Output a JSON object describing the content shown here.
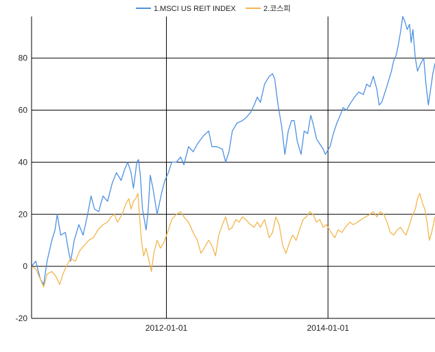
{
  "chart_data": {
    "type": "line",
    "title": "",
    "xlabel": "",
    "ylabel": "",
    "x_range": [
      "2010-05-01",
      "2015-04-30"
    ],
    "x_ticks": [
      "2012-01-01",
      "2014-01-01"
    ],
    "ylim": [
      -20,
      96
    ],
    "y_ticks": [
      -20,
      0,
      20,
      40,
      60,
      80
    ],
    "grid": true,
    "legend_position": "top-center",
    "series": [
      {
        "name": "1.MSCI US REIT INDEX",
        "color": "#4a8fe2",
        "points": [
          [
            "2010-05-01",
            0
          ],
          [
            "2010-05-20",
            2
          ],
          [
            "2010-06-10",
            -5
          ],
          [
            "2010-06-25",
            -7
          ],
          [
            "2010-07-10",
            2
          ],
          [
            "2010-08-01",
            10
          ],
          [
            "2010-08-15",
            14
          ],
          [
            "2010-08-25",
            20
          ],
          [
            "2010-09-10",
            12
          ],
          [
            "2010-10-01",
            13
          ],
          [
            "2010-10-15",
            6
          ],
          [
            "2010-10-25",
            2
          ],
          [
            "2010-11-10",
            10
          ],
          [
            "2010-12-01",
            16
          ],
          [
            "2010-12-20",
            12
          ],
          [
            "2011-01-10",
            20
          ],
          [
            "2011-01-25",
            27
          ],
          [
            "2011-02-10",
            22
          ],
          [
            "2011-03-01",
            21
          ],
          [
            "2011-03-20",
            27
          ],
          [
            "2011-04-10",
            25
          ],
          [
            "2011-05-01",
            32
          ],
          [
            "2011-05-20",
            36
          ],
          [
            "2011-06-10",
            33
          ],
          [
            "2011-06-25",
            37
          ],
          [
            "2011-07-10",
            40
          ],
          [
            "2011-07-25",
            36
          ],
          [
            "2011-08-05",
            30
          ],
          [
            "2011-08-20",
            40
          ],
          [
            "2011-08-28",
            41
          ],
          [
            "2011-09-05",
            35
          ],
          [
            "2011-09-15",
            22
          ],
          [
            "2011-10-01",
            14
          ],
          [
            "2011-10-10",
            21
          ],
          [
            "2011-10-20",
            35
          ],
          [
            "2011-11-01",
            30
          ],
          [
            "2011-11-20",
            20
          ],
          [
            "2011-12-10",
            28
          ],
          [
            "2011-12-25",
            33
          ],
          [
            "2012-01-10",
            36
          ],
          [
            "2012-01-25",
            40
          ],
          [
            "2012-02-15",
            40
          ],
          [
            "2012-03-05",
            42
          ],
          [
            "2012-03-20",
            39
          ],
          [
            "2012-04-10",
            46
          ],
          [
            "2012-05-01",
            44
          ],
          [
            "2012-05-20",
            47
          ],
          [
            "2012-06-15",
            50
          ],
          [
            "2012-07-10",
            52
          ],
          [
            "2012-07-25",
            46
          ],
          [
            "2012-08-15",
            46
          ],
          [
            "2012-09-10",
            45
          ],
          [
            "2012-09-25",
            40
          ],
          [
            "2012-10-10",
            44
          ],
          [
            "2012-10-25",
            52
          ],
          [
            "2012-11-15",
            55
          ],
          [
            "2012-12-10",
            56
          ],
          [
            "2012-12-25",
            57
          ],
          [
            "2013-01-15",
            59
          ],
          [
            "2013-02-01",
            62
          ],
          [
            "2013-02-15",
            65
          ],
          [
            "2013-03-01",
            63
          ],
          [
            "2013-03-20",
            70
          ],
          [
            "2013-04-10",
            73
          ],
          [
            "2013-04-25",
            74
          ],
          [
            "2013-05-05",
            72
          ],
          [
            "2013-05-20",
            62
          ],
          [
            "2013-06-05",
            54
          ],
          [
            "2013-06-20",
            43
          ],
          [
            "2013-07-05",
            52
          ],
          [
            "2013-07-20",
            56
          ],
          [
            "2013-08-01",
            56
          ],
          [
            "2013-08-15",
            48
          ],
          [
            "2013-09-01",
            43
          ],
          [
            "2013-09-15",
            52
          ],
          [
            "2013-10-01",
            51
          ],
          [
            "2013-10-15",
            58
          ],
          [
            "2013-10-25",
            55
          ],
          [
            "2013-11-10",
            49
          ],
          [
            "2013-11-25",
            47
          ],
          [
            "2013-12-10",
            45
          ],
          [
            "2013-12-20",
            43
          ],
          [
            "2014-01-10",
            46
          ],
          [
            "2014-01-25",
            51
          ],
          [
            "2014-02-10",
            55
          ],
          [
            "2014-02-25",
            58
          ],
          [
            "2014-03-10",
            61
          ],
          [
            "2014-03-25",
            60
          ],
          [
            "2014-04-15",
            63
          ],
          [
            "2014-05-01",
            65
          ],
          [
            "2014-05-20",
            67
          ],
          [
            "2014-06-10",
            66
          ],
          [
            "2014-06-25",
            70
          ],
          [
            "2014-07-10",
            69
          ],
          [
            "2014-07-25",
            73
          ],
          [
            "2014-08-10",
            68
          ],
          [
            "2014-08-20",
            62
          ],
          [
            "2014-09-01",
            63
          ],
          [
            "2014-09-20",
            68
          ],
          [
            "2014-10-01",
            71
          ],
          [
            "2014-10-15",
            75
          ],
          [
            "2014-10-25",
            79
          ],
          [
            "2014-11-05",
            81
          ],
          [
            "2014-11-15",
            85
          ],
          [
            "2014-11-25",
            90
          ],
          [
            "2014-12-05",
            96
          ],
          [
            "2014-12-15",
            94
          ],
          [
            "2014-12-25",
            91
          ],
          [
            "2015-01-05",
            93
          ],
          [
            "2015-01-12",
            86
          ],
          [
            "2015-01-20",
            91
          ],
          [
            "2015-01-31",
            80
          ],
          [
            "2015-02-10",
            75
          ],
          [
            "2015-02-25",
            78
          ],
          [
            "2015-03-10",
            80
          ],
          [
            "2015-03-20",
            70
          ],
          [
            "2015-03-31",
            62
          ],
          [
            "2015-04-10",
            68
          ],
          [
            "2015-04-20",
            74
          ],
          [
            "2015-04-30",
            78
          ]
        ]
      },
      {
        "name": "2.코스피",
        "color": "#f2b54a",
        "points": [
          [
            "2010-05-01",
            0
          ],
          [
            "2010-05-20",
            -1
          ],
          [
            "2010-06-10",
            -5
          ],
          [
            "2010-06-25",
            -8
          ],
          [
            "2010-07-10",
            -3
          ],
          [
            "2010-08-01",
            -2
          ],
          [
            "2010-08-20",
            -4
          ],
          [
            "2010-09-05",
            -7
          ],
          [
            "2010-09-20",
            -3
          ],
          [
            "2010-10-05",
            0
          ],
          [
            "2010-10-25",
            3
          ],
          [
            "2010-11-15",
            2
          ],
          [
            "2010-12-05",
            6
          ],
          [
            "2010-12-25",
            8
          ],
          [
            "2011-01-15",
            10
          ],
          [
            "2011-02-05",
            11
          ],
          [
            "2011-02-25",
            14
          ],
          [
            "2011-03-20",
            16
          ],
          [
            "2011-04-10",
            17
          ],
          [
            "2011-04-25",
            19
          ],
          [
            "2011-05-10",
            20
          ],
          [
            "2011-05-25",
            17
          ],
          [
            "2011-06-15",
            20
          ],
          [
            "2011-07-01",
            24
          ],
          [
            "2011-07-15",
            26
          ],
          [
            "2011-07-25",
            22
          ],
          [
            "2011-08-05",
            25
          ],
          [
            "2011-08-15",
            26
          ],
          [
            "2011-08-25",
            28
          ],
          [
            "2011-09-01",
            20
          ],
          [
            "2011-09-10",
            10
          ],
          [
            "2011-09-20",
            4
          ],
          [
            "2011-10-01",
            7
          ],
          [
            "2011-10-15",
            2
          ],
          [
            "2011-10-25",
            -2
          ],
          [
            "2011-11-05",
            5
          ],
          [
            "2011-11-20",
            10
          ],
          [
            "2011-12-05",
            7
          ],
          [
            "2011-12-20",
            9
          ],
          [
            "2012-01-10",
            14
          ],
          [
            "2012-01-25",
            18
          ],
          [
            "2012-02-15",
            20
          ],
          [
            "2012-03-05",
            21
          ],
          [
            "2012-03-20",
            19
          ],
          [
            "2012-04-10",
            17
          ],
          [
            "2012-05-01",
            13
          ],
          [
            "2012-05-20",
            10
          ],
          [
            "2012-06-05",
            5
          ],
          [
            "2012-06-20",
            7
          ],
          [
            "2012-07-10",
            10
          ],
          [
            "2012-07-25",
            8
          ],
          [
            "2012-08-10",
            4
          ],
          [
            "2012-08-25",
            12
          ],
          [
            "2012-09-10",
            16
          ],
          [
            "2012-09-25",
            19
          ],
          [
            "2012-10-10",
            14
          ],
          [
            "2012-10-25",
            15
          ],
          [
            "2012-11-10",
            18
          ],
          [
            "2012-11-25",
            17
          ],
          [
            "2012-12-10",
            19
          ],
          [
            "2012-12-25",
            18
          ],
          [
            "2013-01-15",
            16
          ],
          [
            "2013-02-01",
            15
          ],
          [
            "2013-02-15",
            17
          ],
          [
            "2013-03-01",
            15
          ],
          [
            "2013-03-20",
            18
          ],
          [
            "2013-04-10",
            11
          ],
          [
            "2013-04-25",
            13
          ],
          [
            "2013-05-10",
            19
          ],
          [
            "2013-05-25",
            16
          ],
          [
            "2013-06-10",
            8
          ],
          [
            "2013-06-25",
            5
          ],
          [
            "2013-07-10",
            9
          ],
          [
            "2013-07-25",
            12
          ],
          [
            "2013-08-10",
            10
          ],
          [
            "2013-08-25",
            14
          ],
          [
            "2013-09-10",
            18
          ],
          [
            "2013-09-25",
            19
          ],
          [
            "2013-10-10",
            21
          ],
          [
            "2013-10-25",
            20
          ],
          [
            "2013-11-10",
            17
          ],
          [
            "2013-11-25",
            18
          ],
          [
            "2013-12-10",
            15
          ],
          [
            "2013-12-25",
            16
          ],
          [
            "2014-01-15",
            13
          ],
          [
            "2014-02-01",
            11
          ],
          [
            "2014-02-15",
            14
          ],
          [
            "2014-03-05",
            13
          ],
          [
            "2014-03-20",
            15
          ],
          [
            "2014-04-10",
            17
          ],
          [
            "2014-04-25",
            16
          ],
          [
            "2014-05-15",
            17
          ],
          [
            "2014-06-01",
            18
          ],
          [
            "2014-06-20",
            19
          ],
          [
            "2014-07-10",
            20
          ],
          [
            "2014-07-25",
            21
          ],
          [
            "2014-08-10",
            19
          ],
          [
            "2014-08-25",
            21
          ],
          [
            "2014-09-10",
            20
          ],
          [
            "2014-09-25",
            17
          ],
          [
            "2014-10-10",
            13
          ],
          [
            "2014-10-25",
            12
          ],
          [
            "2014-11-10",
            14
          ],
          [
            "2014-11-25",
            15
          ],
          [
            "2014-12-10",
            13
          ],
          [
            "2014-12-20",
            12
          ],
          [
            "2015-01-05",
            16
          ],
          [
            "2015-01-15",
            19
          ],
          [
            "2015-01-31",
            22
          ],
          [
            "2015-02-10",
            26
          ],
          [
            "2015-02-20",
            28
          ],
          [
            "2015-03-05",
            24
          ],
          [
            "2015-03-15",
            22
          ],
          [
            "2015-03-25",
            17
          ],
          [
            "2015-04-05",
            10
          ],
          [
            "2015-04-15",
            13
          ],
          [
            "2015-04-30",
            19
          ]
        ]
      }
    ]
  }
}
